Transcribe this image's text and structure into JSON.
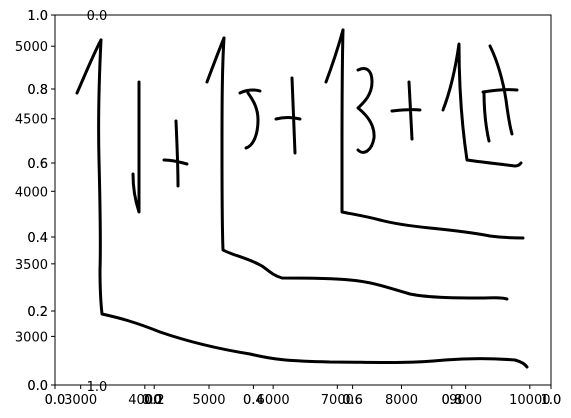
{
  "chart_data": [
    {
      "type": "line",
      "grid": false,
      "legend": "none",
      "ink_color": "#000000",
      "xlim": [
        0.0,
        1.0
      ],
      "ylim": [
        0.0,
        1.0
      ],
      "x_ticks": [
        "0.0",
        "0.2",
        "0.4",
        "0.6",
        "0.8",
        "1.0"
      ],
      "y_ticks": [
        "0.0",
        "0.2",
        "0.4",
        "0.6",
        "0.8",
        "1.0"
      ],
      "twin_x_ticks": [
        "0.0",
        "0.2",
        "0.4",
        "0.6",
        "0.8",
        "1.0"
      ],
      "twin_y_ticks": [
        "0.0",
        "0.2",
        "0.4",
        "0.6",
        "0.8",
        "1.0"
      ],
      "secondary_x_ticks": [
        "3000",
        "4000",
        "5000",
        "6000",
        "7000",
        "8000",
        "9000",
        "10000"
      ],
      "secondary_y_ticks": [
        "3000",
        "3500",
        "4000",
        "4500",
        "5000"
      ],
      "extra_tick_fragments": [
        "1.0",
        "0.0",
        "0.0"
      ],
      "handwritten_expression": "1+5+3+1π",
      "series": [
        {
          "x": [
            3000,
            3050,
            3300,
            3600,
            4000,
            4400,
            4800,
            5200,
            5600,
            6000,
            6400,
            6800,
            7200,
            7600,
            8000,
            8400,
            8800,
            9200,
            9600,
            10000,
            10150
          ],
          "y": [
            3170,
            3160,
            3130,
            3090,
            3040,
            3000,
            2970,
            2950,
            2930,
            2910,
            2890,
            2880,
            2870,
            2870,
            2880,
            2900,
            2920,
            2940,
            2940,
            2930,
            2910
          ]
        },
        {
          "x": [
            0.0,
            0.03,
            0.08,
            0.14,
            0.18,
            0.22,
            0.26,
            0.32,
            0.42,
            0.52,
            0.6,
            0.7,
            0.78,
            0.87
          ],
          "y": [
            0.58,
            0.57,
            0.56,
            0.55,
            0.53,
            0.5,
            0.47,
            0.46,
            0.46,
            0.45,
            0.42,
            0.4,
            0.4,
            0.4
          ]
        },
        {
          "x": [
            0.0,
            0.05,
            0.12,
            0.2,
            0.3,
            0.4,
            0.5,
            0.6,
            0.7,
            0.8,
            0.87
          ],
          "y": [
            0.46,
            0.45,
            0.44,
            0.41,
            0.4,
            0.39,
            0.38,
            0.38,
            0.38,
            0.37,
            0.37
          ]
        }
      ]
    }
  ]
}
